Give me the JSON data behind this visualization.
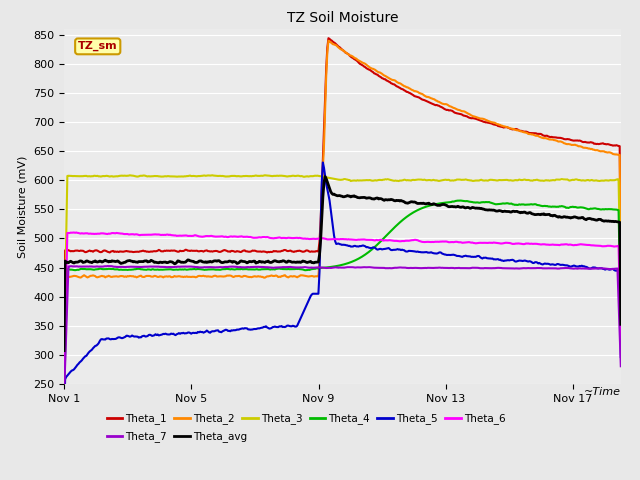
{
  "title": "TZ Soil Moisture",
  "ylabel": "Soil Moisture (mV)",
  "ylim": [
    250,
    860
  ],
  "yticks": [
    250,
    300,
    350,
    400,
    450,
    500,
    550,
    600,
    650,
    700,
    750,
    800,
    850
  ],
  "xtick_positions": [
    0,
    4,
    8,
    12,
    16
  ],
  "xtick_labels": [
    "Nov 1",
    "Nov 5",
    "Nov 9",
    "Nov 13",
    "Nov 17"
  ],
  "xlim": [
    0,
    17.5
  ],
  "fig_facecolor": "#e8e8e8",
  "plot_facecolor": "#ebebeb",
  "grid_color": "#ffffff",
  "title_fontsize": 10,
  "tick_fontsize": 8,
  "ylabel_fontsize": 8,
  "colors": {
    "Theta_1": "#cc0000",
    "Theta_2": "#ff8800",
    "Theta_3": "#cccc00",
    "Theta_4": "#00bb00",
    "Theta_5": "#0000cc",
    "Theta_6": "#ff00ff",
    "Theta_7": "#9900cc",
    "Theta_avg": "#000000"
  },
  "lws": {
    "Theta_1": 1.5,
    "Theta_2": 1.5,
    "Theta_3": 1.5,
    "Theta_4": 1.5,
    "Theta_5": 1.5,
    "Theta_6": 1.5,
    "Theta_7": 1.5,
    "Theta_avg": 2.0
  },
  "legend_row1": [
    "Theta_1",
    "Theta_2",
    "Theta_3",
    "Theta_4",
    "Theta_5",
    "Theta_6"
  ],
  "legend_row2": [
    "Theta_7",
    "Theta_avg"
  ],
  "tz_sm_label": "TZ_sm",
  "tz_sm_color": "#aa0000",
  "tz_sm_bg": "#ffffaa",
  "tz_sm_edge": "#cc9900"
}
